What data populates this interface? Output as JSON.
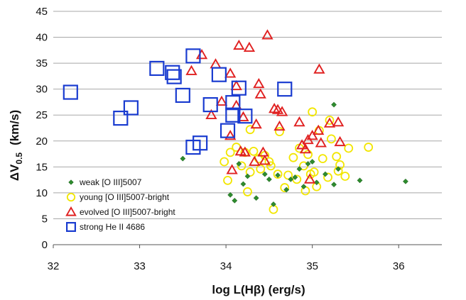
{
  "chart_data": {
    "type": "scatter",
    "title": "",
    "xlabel": "log L(Hβ)   (erg/s)",
    "ylabel": {
      "main": "ΔV",
      "sub": "0.5",
      "units": "(km/s)"
    },
    "xlim": [
      32,
      36.5
    ],
    "ylim": [
      0,
      45
    ],
    "xticks": [
      32,
      33,
      34,
      35,
      36
    ],
    "yticks": [
      0,
      5,
      10,
      15,
      20,
      25,
      30,
      35,
      40,
      45
    ],
    "grid": {
      "y": true,
      "x": false
    },
    "legend_position": "lower-left",
    "series": [
      {
        "name": "weak [O III]5007",
        "marker": "diamond",
        "color": "#2e8b2e",
        "points": [
          [
            33.5,
            16.6
          ],
          [
            34.05,
            9.6
          ],
          [
            34.1,
            8.5
          ],
          [
            34.15,
            15.6
          ],
          [
            34.2,
            11.7
          ],
          [
            34.25,
            13.2
          ],
          [
            34.35,
            9.0
          ],
          [
            34.45,
            13.6
          ],
          [
            34.5,
            12.6
          ],
          [
            34.55,
            7.8
          ],
          [
            34.6,
            13.4
          ],
          [
            34.7,
            10.6
          ],
          [
            34.75,
            12.6
          ],
          [
            34.8,
            13.0
          ],
          [
            34.85,
            14.6
          ],
          [
            34.9,
            11.2
          ],
          [
            34.95,
            15.6
          ],
          [
            35.0,
            16.0
          ],
          [
            35.05,
            12.0
          ],
          [
            35.15,
            13.6
          ],
          [
            35.25,
            11.6
          ],
          [
            35.25,
            27.0
          ],
          [
            35.3,
            14.6
          ],
          [
            35.55,
            12.4
          ],
          [
            36.08,
            12.2
          ]
        ]
      },
      {
        "name": "young [O III]5007-bright",
        "marker": "circle",
        "color": "#f2e600",
        "points": [
          [
            33.98,
            16.0
          ],
          [
            34.02,
            12.4
          ],
          [
            34.05,
            17.8
          ],
          [
            34.12,
            18.8
          ],
          [
            34.18,
            15.2
          ],
          [
            34.22,
            17.8
          ],
          [
            34.25,
            10.2
          ],
          [
            34.28,
            14.0
          ],
          [
            34.32,
            18.0
          ],
          [
            34.38,
            16.6
          ],
          [
            34.4,
            14.6
          ],
          [
            34.45,
            17.2
          ],
          [
            34.5,
            16.0
          ],
          [
            34.52,
            15.2
          ],
          [
            34.55,
            6.8
          ],
          [
            34.6,
            13.6
          ],
          [
            34.62,
            21.8
          ],
          [
            34.68,
            11.0
          ],
          [
            34.72,
            13.4
          ],
          [
            34.78,
            16.8
          ],
          [
            34.82,
            12.6
          ],
          [
            34.85,
            18.6
          ],
          [
            34.9,
            15.2
          ],
          [
            34.92,
            10.4
          ],
          [
            34.95,
            17.4
          ],
          [
            34.98,
            13.6
          ],
          [
            35.0,
            25.6
          ],
          [
            35.02,
            14.0
          ],
          [
            35.05,
            11.2
          ],
          [
            35.08,
            22.0
          ],
          [
            35.12,
            16.6
          ],
          [
            35.18,
            13.0
          ],
          [
            35.2,
            24.0
          ],
          [
            35.22,
            20.4
          ],
          [
            35.28,
            17.0
          ],
          [
            35.3,
            14.2
          ],
          [
            35.32,
            15.4
          ],
          [
            35.38,
            13.2
          ],
          [
            35.42,
            18.6
          ],
          [
            35.65,
            18.8
          ],
          [
            34.28,
            22.2
          ]
        ]
      },
      {
        "name": "evolved [O III]5007-bright",
        "marker": "triangle",
        "color": "#e02020",
        "points": [
          [
            33.6,
            33.5
          ],
          [
            33.72,
            36.6
          ],
          [
            33.83,
            25.0
          ],
          [
            33.88,
            34.8
          ],
          [
            33.95,
            27.6
          ],
          [
            34.05,
            33.0
          ],
          [
            34.05,
            21.0
          ],
          [
            34.07,
            14.4
          ],
          [
            34.12,
            30.6
          ],
          [
            34.12,
            26.8
          ],
          [
            34.15,
            38.4
          ],
          [
            34.17,
            18.0
          ],
          [
            34.2,
            24.6
          ],
          [
            34.22,
            17.8
          ],
          [
            34.27,
            38.0
          ],
          [
            34.33,
            16.0
          ],
          [
            34.35,
            23.2
          ],
          [
            34.38,
            31.0
          ],
          [
            34.4,
            29.0
          ],
          [
            34.43,
            17.8
          ],
          [
            34.45,
            16.2
          ],
          [
            34.48,
            40.4
          ],
          [
            34.56,
            26.2
          ],
          [
            34.6,
            26.0
          ],
          [
            34.62,
            22.8
          ],
          [
            34.65,
            25.6
          ],
          [
            34.85,
            23.6
          ],
          [
            34.88,
            19.2
          ],
          [
            34.92,
            18.4
          ],
          [
            34.95,
            20.2
          ],
          [
            34.97,
            12.6
          ],
          [
            35.0,
            21.0
          ],
          [
            35.07,
            22.0
          ],
          [
            35.1,
            19.6
          ],
          [
            35.2,
            23.4
          ],
          [
            35.08,
            33.8
          ],
          [
            35.32,
            19.8
          ],
          [
            35.3,
            23.6
          ]
        ]
      },
      {
        "name": "strong He II 4686",
        "marker": "square",
        "color": "#1a3cd0",
        "points": [
          [
            32.2,
            29.4
          ],
          [
            32.78,
            24.4
          ],
          [
            32.9,
            26.4
          ],
          [
            33.2,
            34.0
          ],
          [
            33.38,
            33.2
          ],
          [
            33.4,
            32.4
          ],
          [
            33.5,
            28.8
          ],
          [
            33.62,
            36.4
          ],
          [
            33.62,
            18.8
          ],
          [
            33.7,
            19.6
          ],
          [
            33.82,
            27.0
          ],
          [
            33.92,
            32.8
          ],
          [
            34.02,
            22.0
          ],
          [
            34.08,
            27.4
          ],
          [
            34.08,
            25.0
          ],
          [
            34.15,
            30.2
          ],
          [
            34.22,
            24.8
          ],
          [
            34.68,
            30.0
          ]
        ]
      }
    ]
  }
}
